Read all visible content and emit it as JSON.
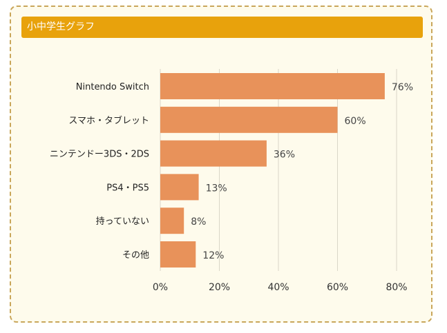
{
  "title": "小中学生グラフ",
  "colors": {
    "header": "#e8a20c",
    "bar": "#e8925a",
    "grid": "#d9d6c8"
  },
  "chart_data": {
    "type": "bar",
    "orientation": "horizontal",
    "categories": [
      "Nintendo Switch",
      "スマホ・タブレット",
      "ニンテンドー3DS・2DS",
      "PS4・PS5",
      "持っていない",
      "その他"
    ],
    "values": [
      76,
      60,
      36,
      13,
      8,
      12
    ],
    "data_labels": [
      "76%",
      "60%",
      "36%",
      "13%",
      "8%",
      "12%"
    ],
    "xlim": [
      0,
      80
    ],
    "xticks": [
      0,
      20,
      40,
      60,
      80
    ],
    "xtick_labels": [
      "0%",
      "20%",
      "40%",
      "60%",
      "80%"
    ],
    "grid": true
  }
}
